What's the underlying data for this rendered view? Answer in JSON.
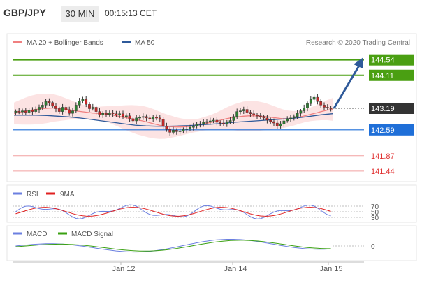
{
  "header": {
    "pair": "GBP/JPY",
    "timeframe": "30 MIN",
    "time": "00:15:13 CET"
  },
  "legend": {
    "ma20_bb": "MA 20 + Bollinger Bands",
    "ma50": "MA 50",
    "credit": "Research © 2020 Trading Central"
  },
  "levels": [
    {
      "value": "144.54",
      "kind": "resistance",
      "color": "#4a9f12"
    },
    {
      "value": "144.11",
      "kind": "resistance",
      "color": "#4a9f12"
    },
    {
      "value": "143.19",
      "kind": "last",
      "color": "#333333"
    },
    {
      "value": "142.59",
      "kind": "pivot",
      "color": "#1f6fd8"
    },
    {
      "value": "141.87",
      "kind": "support",
      "color": "#e03030"
    },
    {
      "value": "141.44",
      "kind": "support",
      "color": "#e03030"
    }
  ],
  "rsi": {
    "label": "RSI",
    "signal_label": "9MA",
    "ticks": [
      "70",
      "50",
      "30"
    ]
  },
  "macd": {
    "label": "MACD",
    "signal_label": "MACD Signal",
    "ticks": [
      "0"
    ]
  },
  "xaxis": {
    "ticks": [
      "Jan 12",
      "Jan 14",
      "Jan 15"
    ]
  },
  "colors": {
    "ma20": "#f08080",
    "ma50": "#2f5a9a",
    "bands": "#fbd7d7",
    "rsi": "#6b7fe0",
    "rsi_ma": "#e02020",
    "macd": "#6b7fe0",
    "macd_signal": "#3aa012",
    "arrow": "#2f5a9a"
  },
  "chart_data": {
    "type": "candlestick",
    "title": "GBP/JPY",
    "timeframe": "30 MIN",
    "ylim": [
      141.2,
      144.8
    ],
    "levels": [
      144.54,
      144.11,
      143.19,
      142.59,
      141.87,
      141.44
    ],
    "last_price": 143.19,
    "close": [
      143.11,
      143.09,
      143.12,
      143.08,
      143.14,
      143.1,
      143.16,
      143.22,
      143.28,
      143.38,
      143.35,
      143.25,
      143.18,
      143.1,
      143.22,
      143.15,
      143.05,
      143.12,
      143.28,
      143.4,
      143.44,
      143.3,
      143.18,
      143.22,
      143.1,
      143.0,
      143.05,
      143.02,
      143.06,
      143.04,
      143.0,
      143.04,
      142.96,
      142.98,
      142.9,
      142.84,
      142.92,
      142.94,
      142.96,
      142.92,
      142.9,
      142.94,
      142.92,
      142.88,
      142.7,
      142.6,
      142.52,
      142.58,
      142.54,
      142.56,
      142.6,
      142.62,
      142.66,
      142.7,
      142.74,
      142.76,
      142.8,
      142.82,
      142.84,
      142.86,
      142.8,
      142.78,
      142.76,
      142.8,
      142.85,
      142.96,
      143.1,
      143.12,
      143.16,
      143.08,
      143.04,
      143.0,
      142.98,
      142.96,
      142.92,
      142.86,
      142.82,
      142.78,
      142.7,
      142.76,
      142.84,
      142.9,
      142.92,
      142.96,
      143.05,
      143.12,
      143.2,
      143.32,
      143.44,
      143.5,
      143.38,
      143.28,
      143.22,
      143.2,
      143.19
    ],
    "ma20": [
      143.05,
      143.08,
      143.11,
      143.14,
      143.16,
      143.18,
      143.19,
      143.2,
      143.19,
      143.17,
      143.15,
      143.12,
      143.1,
      143.08,
      143.06,
      143.05,
      143.04,
      143.02,
      142.99,
      142.96,
      142.93,
      142.9,
      142.87,
      142.84,
      142.8,
      142.76,
      142.72,
      142.69,
      142.68,
      142.67,
      142.67,
      142.68,
      142.7,
      142.72,
      142.76,
      142.79,
      142.82,
      142.86,
      142.9,
      142.93,
      142.95,
      142.97,
      142.98,
      142.98,
      142.97,
      142.96,
      142.94,
      142.92,
      142.9,
      142.9,
      142.91,
      142.94,
      142.98,
      143.02,
      143.06,
      143.1,
      143.14,
      143.16
    ],
    "ma50": [
      143.0,
      143.0,
      143.0,
      142.99,
      142.97,
      142.95,
      142.92,
      142.88,
      142.84,
      142.8,
      142.76,
      142.72,
      142.7,
      142.69,
      142.69,
      142.7,
      142.71,
      142.73,
      142.75,
      142.77,
      142.8,
      142.82,
      142.84,
      142.86,
      142.88,
      142.9,
      142.93,
      142.97,
      143.01,
      143.04
    ],
    "rsi_ticks": [
      70,
      50,
      30
    ],
    "macd_ticks": [
      0
    ],
    "x_ticks": [
      "Jan 12",
      "Jan 14",
      "Jan 15"
    ]
  }
}
